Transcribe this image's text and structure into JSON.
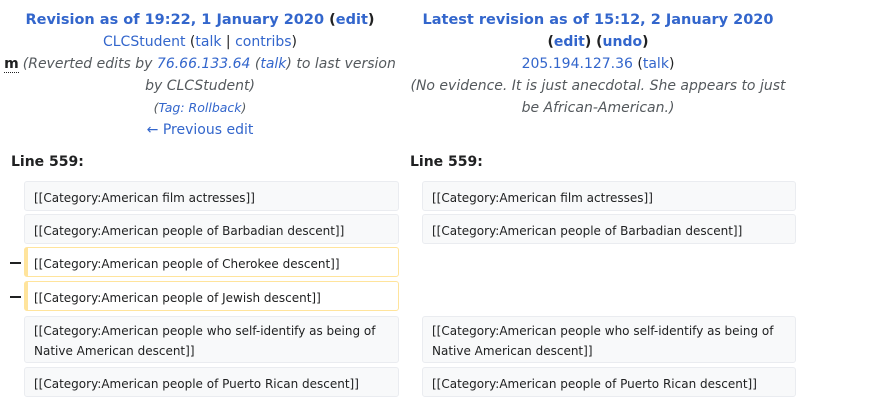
{
  "left": {
    "title_label": "Revision as of 19:22, 1 January 2020",
    "edit_link": "edit",
    "user": "CLCStudent",
    "talk": "talk",
    "sep": "|",
    "contribs": "contribs",
    "minor_marker": "m",
    "summary_pre": "(Reverted edits by ",
    "summary_ip": "76.66.133.64",
    "summary_talk": "talk",
    "summary_post1": ") to last version",
    "summary_post2": "by CLCStudent)",
    "tag_pre": "(",
    "tag_link": "Tag: Rollback",
    "tag_post": ")",
    "prev_edit": "← Previous edit",
    "line_label": "Line 559:"
  },
  "right": {
    "title_label": "Latest revision as of 15:12, 2 January 2020",
    "edit_link": "edit",
    "undo_link": "undo",
    "ip": "205.194.127.36",
    "talk": "talk",
    "summary_line1": "(No evidence. It is just anecdotal. She appears to just",
    "summary_line2": "be African-American.)",
    "line_label": "Line 559:"
  },
  "diff": {
    "rows": [
      {
        "left": "[[Category:American film actresses]]",
        "right": "[[Category:American film actresses]]"
      },
      {
        "left": "[[Category:American people of Barbadian descent]]",
        "right": "[[Category:American people of Barbadian descent]]"
      },
      {
        "left": "[[Category:American people of Cherokee descent]]",
        "marker": "−"
      },
      {
        "left": "[[Category:American people of Jewish descent]]",
        "marker": "−"
      },
      {
        "left_l1": "[[Category:American people who self-identify as being of",
        "left_l2": "Native American descent]]",
        "right_l1": "[[Category:American people who self-identify as being of",
        "right_l2": "Native American descent]]"
      },
      {
        "left": "[[Category:American people of Puerto Rican descent]]",
        "right": "[[Category:American people of Puerto Rican descent]]"
      }
    ]
  },
  "colors": {
    "link": "#3366cc",
    "text": "#202122",
    "context_bg": "#f8f9fa",
    "context_border": "#eaecf0",
    "deleted_border": "#ffe49c"
  }
}
